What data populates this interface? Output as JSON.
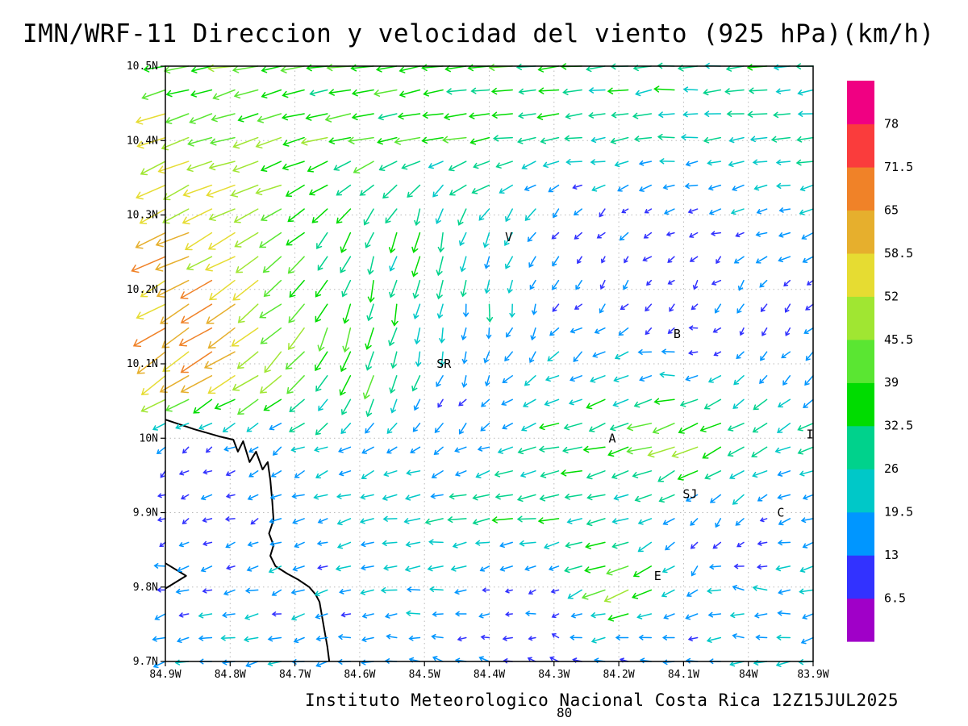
{
  "title": "IMN/WRF-11 Direccion y velocidad del viento (925 hPa)(km/h)",
  "footer": {
    "caption": "Instituto Meteorologico Nacional Costa Rica 12Z15JUL2025",
    "stray_label": "80"
  },
  "chart_data": {
    "type": "vector-field",
    "title": "IMN/WRF-11 Direccion y velocidad del viento (925 hPa)(km/h)",
    "units": "km/h",
    "pressure_level": "925 hPa",
    "x_axis": {
      "tick_values_deg_west": [
        84.9,
        84.8,
        84.7,
        84.6,
        84.5,
        84.4,
        84.3,
        84.2,
        84.1,
        84.0,
        83.9
      ],
      "tick_labels": [
        "84.9W",
        "84.8W",
        "84.7W",
        "84.6W",
        "84.5W",
        "84.4W",
        "84.3W",
        "84.2W",
        "84.1W",
        "84W",
        "83.9W"
      ]
    },
    "y_axis": {
      "tick_values_deg_north": [
        10.5,
        10.4,
        10.3,
        10.2,
        10.1,
        10.0,
        9.9,
        9.8,
        9.7
      ],
      "tick_labels": [
        "10.5N",
        "10.4N",
        "10.3N",
        "10.2N",
        "10.1N",
        "10N",
        "9.9N",
        "9.8N",
        "9.7N"
      ]
    },
    "grid": "dotted",
    "colorbar": {
      "position": "right",
      "levels": [
        6.5,
        13,
        19.5,
        26,
        32.5,
        39,
        45.5,
        52,
        58.5,
        65,
        71.5,
        78
      ],
      "level_labels": [
        "6.5",
        "13",
        "19.5",
        "26",
        "32.5",
        "39",
        "45.5",
        "52",
        "58.5",
        "65",
        "71.5",
        "78"
      ],
      "colors_bottom_to_top": [
        "#a000c8",
        "#3232ff",
        "#0096ff",
        "#00c8c8",
        "#00d28c",
        "#00dc00",
        "#5ae632",
        "#a0e632",
        "#e6dc32",
        "#e6af2d",
        "#f08228",
        "#fa3c3c",
        "#f00082"
      ]
    },
    "stations": [
      {
        "label": "V",
        "lon_w": 84.37,
        "lat_n": 10.27
      },
      {
        "label": "B",
        "lon_w": 84.11,
        "lat_n": 10.14
      },
      {
        "label": "SR",
        "lon_w": 84.47,
        "lat_n": 10.1
      },
      {
        "label": "A",
        "lon_w": 84.21,
        "lat_n": 10.0
      },
      {
        "label": "I",
        "lon_w": 83.905,
        "lat_n": 10.005
      },
      {
        "label": "SJ",
        "lon_w": 84.09,
        "lat_n": 9.925
      },
      {
        "label": "C",
        "lon_w": 83.95,
        "lat_n": 9.9
      },
      {
        "label": "E",
        "lon_w": 84.14,
        "lat_n": 9.815
      }
    ],
    "coastlines": [
      [
        [
          84.9,
          10.025
        ],
        [
          84.855,
          10.012
        ],
        [
          84.815,
          10.002
        ],
        [
          84.795,
          9.998
        ],
        [
          84.788,
          9.982
        ],
        [
          84.78,
          9.996
        ],
        [
          84.77,
          9.968
        ],
        [
          84.76,
          9.982
        ],
        [
          84.75,
          9.958
        ],
        [
          84.742,
          9.968
        ],
        [
          84.738,
          9.944
        ],
        [
          84.735,
          9.915
        ],
        [
          84.733,
          9.89
        ],
        [
          84.74,
          9.872
        ],
        [
          84.733,
          9.856
        ],
        [
          84.738,
          9.842
        ],
        [
          84.73,
          9.828
        ],
        [
          84.712,
          9.818
        ],
        [
          84.695,
          9.81
        ],
        [
          84.678,
          9.8
        ],
        [
          84.668,
          9.79
        ],
        [
          84.662,
          9.78
        ],
        [
          84.658,
          9.76
        ],
        [
          84.654,
          9.74
        ],
        [
          84.65,
          9.72
        ],
        [
          84.647,
          9.7
        ]
      ],
      [
        [
          84.9,
          9.832
        ],
        [
          84.868,
          9.815
        ],
        [
          84.9,
          9.798
        ]
      ]
    ],
    "wind_field": {
      "description": "u = eastward, v = northward component (km/h), coarse grid read from plot",
      "lon_w": [
        84.9,
        84.8,
        84.7,
        84.6,
        84.5,
        84.4,
        84.3,
        84.2,
        84.1,
        84.0,
        83.9
      ],
      "lat_n": [
        10.5,
        10.4,
        10.3,
        10.2,
        10.1,
        10.0,
        9.9,
        9.8,
        9.7
      ],
      "u": [
        [
          -40,
          -40,
          -38,
          -36,
          -38,
          -36,
          -34,
          -32,
          -30,
          -30,
          -28
        ],
        [
          -46,
          -42,
          -40,
          -36,
          -36,
          -34,
          -30,
          -28,
          -26,
          -26,
          -24
        ],
        [
          -52,
          -46,
          -36,
          -16,
          -8,
          -14,
          -10,
          -8,
          -12,
          -15,
          -18
        ],
        [
          -56,
          -50,
          -26,
          -10,
          -5,
          -2,
          -5,
          -6,
          -5,
          -8,
          -10
        ],
        [
          -60,
          -52,
          -30,
          -14,
          -6,
          -5,
          -15,
          -20,
          -14,
          -8,
          -10
        ],
        [
          -8,
          -10,
          -18,
          -15,
          -10,
          -12,
          -30,
          -34,
          -50,
          -30,
          -24
        ],
        [
          -8,
          -12,
          -15,
          -20,
          -25,
          -30,
          -32,
          -28,
          -10,
          -8,
          -15
        ],
        [
          -15,
          -15,
          -15,
          -18,
          -20,
          -10,
          -8,
          -42,
          -12,
          -20,
          -18
        ],
        [
          -20,
          -20,
          -18,
          -16,
          -15,
          -12,
          -10,
          -12,
          -15,
          -18,
          -20
        ]
      ],
      "v": [
        [
          -10,
          -8,
          -8,
          -6,
          -6,
          -4,
          -4,
          -4,
          -2,
          -2,
          -2
        ],
        [
          -18,
          -14,
          -12,
          -10,
          -8,
          -6,
          -4,
          -4,
          -2,
          -2,
          -2
        ],
        [
          -26,
          -22,
          -20,
          -26,
          -28,
          -22,
          -10,
          -6,
          -5,
          -5,
          -4
        ],
        [
          -30,
          -30,
          -30,
          -30,
          -30,
          -26,
          -12,
          -8,
          -8,
          -10,
          -8
        ],
        [
          -36,
          -32,
          -34,
          -44,
          -20,
          -14,
          -12,
          -10,
          4,
          -12,
          -14
        ],
        [
          -5,
          -6,
          -8,
          -10,
          -12,
          -8,
          -6,
          -8,
          -18,
          -16,
          -10
        ],
        [
          -4,
          -5,
          -6,
          -5,
          -4,
          -4,
          -5,
          -6,
          -10,
          -8,
          -5
        ],
        [
          -3,
          -4,
          -5,
          -3,
          -2,
          -3,
          -4,
          -16,
          -14,
          4,
          -3
        ],
        [
          -5,
          -4,
          -4,
          -2,
          2,
          4,
          5,
          3,
          2,
          -2,
          -4
        ]
      ]
    }
  }
}
